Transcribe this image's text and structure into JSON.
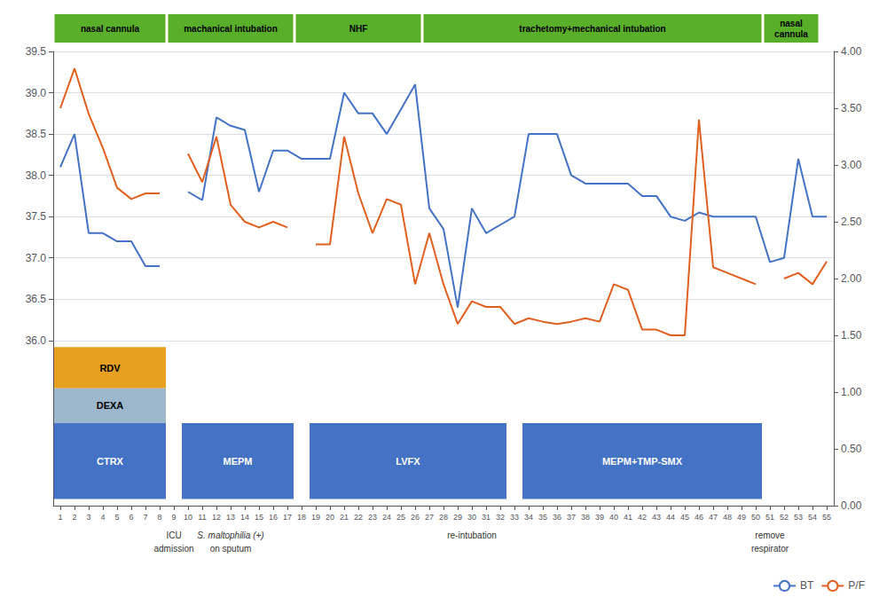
{
  "chart_data": {
    "type": "line",
    "x": [
      1,
      2,
      3,
      4,
      5,
      6,
      7,
      8,
      9,
      10,
      11,
      12,
      13,
      14,
      15,
      16,
      17,
      18,
      19,
      20,
      21,
      22,
      23,
      24,
      25,
      26,
      27,
      28,
      29,
      30,
      31,
      32,
      33,
      34,
      35,
      36,
      37,
      38,
      39,
      40,
      41,
      42,
      43,
      44,
      45,
      46,
      47,
      48,
      49,
      50,
      51,
      52,
      53,
      54,
      55
    ],
    "xlim": [
      0.5,
      55.5
    ],
    "xticks": [
      1,
      2,
      3,
      4,
      5,
      6,
      7,
      8,
      9,
      10,
      11,
      12,
      13,
      14,
      15,
      16,
      17,
      18,
      19,
      20,
      21,
      22,
      23,
      24,
      25,
      26,
      27,
      28,
      29,
      30,
      31,
      32,
      33,
      34,
      35,
      36,
      37,
      38,
      39,
      40,
      41,
      42,
      43,
      44,
      45,
      46,
      47,
      48,
      49,
      50,
      51,
      52,
      53,
      54,
      55
    ],
    "ylim": [
      34.0,
      39.5
    ],
    "yticks": [
      {
        "value": 36.0,
        "label": "36.0"
      },
      36.5,
      {
        "value": 37.0,
        "label": "37.0"
      },
      37.5,
      {
        "value": 38.0,
        "label": "38.0"
      },
      38.5,
      {
        "value": 39.0,
        "label": "39.0"
      },
      39.5
    ],
    "y2lim": [
      0.0,
      4.0
    ],
    "y2ticks": [
      {
        "value": 0.0,
        "label": "0.00"
      },
      {
        "value": 0.5,
        "label": "0.50"
      },
      {
        "value": 1.0,
        "label": "1.00"
      },
      {
        "value": 1.5,
        "label": "1.50"
      },
      {
        "value": 2.0,
        "label": "2.00"
      },
      {
        "value": 2.5,
        "label": "2.50"
      },
      {
        "value": 3.0,
        "label": "3.00"
      },
      {
        "value": 3.5,
        "label": "3.50"
      },
      {
        "value": 4.0,
        "label": "4.00"
      }
    ],
    "grid": true,
    "legend": "lower right",
    "series": [
      {
        "name": "BT",
        "color": "#4472C4",
        "values": [
          38.1,
          38.5,
          37.3,
          37.3,
          37.2,
          37.2,
          36.9,
          36.9,
          null,
          37.8,
          37.7,
          38.7,
          38.6,
          38.55,
          37.8,
          38.3,
          38.3,
          38.2,
          38.2,
          38.2,
          39.0,
          38.75,
          38.75,
          38.5,
          38.8,
          39.1,
          37.6,
          37.35,
          36.4,
          37.6,
          37.3,
          37.4,
          37.5,
          38.5,
          38.5,
          38.5,
          38.0,
          37.9,
          37.9,
          37.9,
          37.9,
          37.75,
          37.75,
          37.5,
          37.45,
          37.55,
          37.5,
          37.5,
          37.5,
          37.5,
          36.95,
          37.0,
          38.2,
          37.5,
          37.5
        ]
      },
      {
        "name": "P/F",
        "color": "#E06020",
        "axis": "y2",
        "values": [
          3.5,
          3.85,
          3.45,
          3.15,
          2.8,
          2.7,
          2.75,
          2.75,
          null,
          3.1,
          2.85,
          3.25,
          2.65,
          2.5,
          2.45,
          2.5,
          2.45,
          null,
          2.3,
          2.3,
          3.25,
          2.75,
          2.4,
          2.7,
          2.65,
          1.95,
          2.4,
          1.95,
          1.6,
          1.8,
          1.75,
          1.75,
          1.6,
          1.65,
          1.62,
          1.6,
          1.62,
          1.65,
          1.62,
          1.95,
          1.9,
          1.55,
          1.55,
          1.5,
          1.5,
          3.4,
          2.1,
          2.05,
          2.0,
          1.95,
          null,
          2.0,
          2.05,
          1.95,
          2.15
        ]
      }
    ],
    "treatments": [
      {
        "label": "RDV",
        "x_start": 1,
        "x_end": 9,
        "y_bottom": 35.42,
        "y_top": 35.92,
        "color": "#E8A020",
        "text_color": "#000000"
      },
      {
        "label": "DEXA",
        "x_start": 1,
        "x_end": 9,
        "y_bottom": 35.0,
        "y_top": 35.42,
        "color": "#9DB8CC",
        "text_color": "#000000"
      },
      {
        "label": "CTRX",
        "x_start": 1,
        "x_end": 9,
        "y_bottom": 34.08,
        "y_top": 35.0,
        "color": "#4472C4",
        "text_color": "#FFFFFF"
      },
      {
        "label": "MEPM",
        "x_start": 10,
        "x_end": 18,
        "y_bottom": 34.08,
        "y_top": 35.0,
        "color": "#4472C4",
        "text_color": "#FFFFFF"
      },
      {
        "label": "LVFX",
        "x_start": 19,
        "x_end": 33,
        "y_bottom": 34.08,
        "y_top": 35.0,
        "color": "#4472C4",
        "text_color": "#FFFFFF"
      },
      {
        "label": "MEPM+TMP-SMX",
        "x_start": 34,
        "x_end": 51,
        "y_bottom": 34.08,
        "y_top": 35.0,
        "color": "#4472C4",
        "text_color": "#FFFFFF"
      }
    ],
    "ventilation": {
      "color": "#5AAF2A",
      "bars": [
        {
          "label": "nasal cannula",
          "x_start": 1,
          "x_end": 9
        },
        {
          "label": "machanical intubation",
          "x_start": 9,
          "x_end": 18
        },
        {
          "label": "NHF",
          "x_start": 18,
          "x_end": 27
        },
        {
          "label": "trachetomy+mechanical intubation",
          "x_start": 27,
          "x_end": 51
        },
        {
          "label": "nasal\ncannula",
          "x_start": 51,
          "x_end": 55
        }
      ]
    },
    "annotations": [
      {
        "x": 9,
        "lines": [
          "ICU",
          "admission"
        ],
        "italic": [
          false,
          false
        ]
      },
      {
        "x": 13,
        "lines": [
          "S. maltophilia (+)",
          "on sputum"
        ],
        "italic": [
          true,
          false
        ]
      },
      {
        "x": 30,
        "lines": [
          "re-intubation"
        ],
        "italic": [
          false
        ]
      },
      {
        "x": 51,
        "lines": [
          "remove",
          "respirator"
        ],
        "italic": [
          false,
          false
        ]
      }
    ]
  }
}
